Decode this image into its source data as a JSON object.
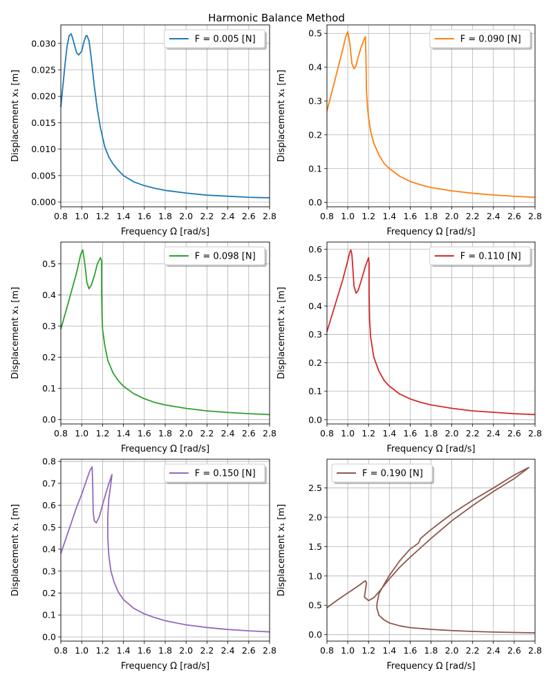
{
  "figure": {
    "title": "Harmonic Balance Method"
  },
  "chart_data": [
    {
      "type": "line",
      "xlabel": "Frequency Ω [rad/s]",
      "ylabel": "Displacement x₁ [m]",
      "xlim": [
        0.8,
        2.8
      ],
      "ylim": [
        -0.0009,
        0.0335
      ],
      "xticks": [
        "0.8",
        "1.0",
        "1.2",
        "1.4",
        "1.6",
        "1.8",
        "2.0",
        "2.2",
        "2.4",
        "2.6",
        "2.8"
      ],
      "yticks": [
        "0.000",
        "0.005",
        "0.010",
        "0.015",
        "0.020",
        "0.025",
        "0.030"
      ],
      "legend_position": "top-right",
      "grid": true,
      "series": [
        {
          "name": "F = 0.005 [N]",
          "color": "#1f77b4",
          "points": [
            [
              0.8,
              0.018
            ],
            [
              0.82,
              0.022
            ],
            [
              0.84,
              0.026
            ],
            [
              0.86,
              0.0295
            ],
            [
              0.88,
              0.0315
            ],
            [
              0.9,
              0.0318
            ],
            [
              0.92,
              0.0305
            ],
            [
              0.95,
              0.0283
            ],
            [
              0.97,
              0.0278
            ],
            [
              1.0,
              0.0285
            ],
            [
              1.02,
              0.0302
            ],
            [
              1.04,
              0.0314
            ],
            [
              1.05,
              0.0315
            ],
            [
              1.07,
              0.0305
            ],
            [
              1.09,
              0.0275
            ],
            [
              1.12,
              0.022
            ],
            [
              1.15,
              0.0175
            ],
            [
              1.18,
              0.014
            ],
            [
              1.22,
              0.0105
            ],
            [
              1.26,
              0.0085
            ],
            [
              1.3,
              0.0072
            ],
            [
              1.35,
              0.006
            ],
            [
              1.4,
              0.005
            ],
            [
              1.5,
              0.0038
            ],
            [
              1.6,
              0.0031
            ],
            [
              1.7,
              0.0026
            ],
            [
              1.8,
              0.0022
            ],
            [
              2.0,
              0.0017
            ],
            [
              2.2,
              0.0013
            ],
            [
              2.4,
              0.0011
            ],
            [
              2.6,
              0.0009
            ],
            [
              2.8,
              0.0008
            ]
          ]
        }
      ]
    },
    {
      "type": "line",
      "xlabel": "Frequency Ω [rad/s]",
      "ylabel": "Displacement x₁ [m]",
      "xlim": [
        0.8,
        2.8
      ],
      "ylim": [
        -0.013,
        0.525
      ],
      "xticks": [
        "0.8",
        "1.0",
        "1.2",
        "1.4",
        "1.6",
        "1.8",
        "2.0",
        "2.2",
        "2.4",
        "2.6",
        "2.8"
      ],
      "yticks": [
        "0.0",
        "0.1",
        "0.2",
        "0.3",
        "0.4",
        "0.5"
      ],
      "legend_position": "top-right",
      "grid": true,
      "series": [
        {
          "name": "F = 0.090 [N]",
          "color": "#ff7f0e",
          "points": [
            [
              0.8,
              0.27
            ],
            [
              0.85,
              0.33
            ],
            [
              0.9,
              0.39
            ],
            [
              0.95,
              0.45
            ],
            [
              0.98,
              0.49
            ],
            [
              1.0,
              0.505
            ],
            [
              1.02,
              0.47
            ],
            [
              1.04,
              0.41
            ],
            [
              1.06,
              0.395
            ],
            [
              1.08,
              0.405
            ],
            [
              1.1,
              0.43
            ],
            [
              1.13,
              0.46
            ],
            [
              1.16,
              0.485
            ],
            [
              1.17,
              0.49
            ],
            [
              1.175,
              0.43
            ],
            [
              1.18,
              0.33
            ],
            [
              1.19,
              0.28
            ],
            [
              1.2,
              0.25
            ],
            [
              1.22,
              0.21
            ],
            [
              1.25,
              0.175
            ],
            [
              1.3,
              0.14
            ],
            [
              1.35,
              0.115
            ],
            [
              1.4,
              0.1
            ],
            [
              1.5,
              0.077
            ],
            [
              1.6,
              0.062
            ],
            [
              1.7,
              0.052
            ],
            [
              1.8,
              0.044
            ],
            [
              2.0,
              0.034
            ],
            [
              2.2,
              0.027
            ],
            [
              2.4,
              0.022
            ],
            [
              2.6,
              0.018
            ],
            [
              2.8,
              0.015
            ]
          ]
        }
      ]
    },
    {
      "type": "line",
      "xlabel": "Frequency Ω [rad/s]",
      "ylabel": "Displacement x₁ [m]",
      "xlim": [
        0.8,
        2.8
      ],
      "ylim": [
        -0.014,
        0.57
      ],
      "xticks": [
        "0.8",
        "1.0",
        "1.2",
        "1.4",
        "1.6",
        "1.8",
        "2.0",
        "2.2",
        "2.4",
        "2.6",
        "2.8"
      ],
      "yticks": [
        "0.0",
        "0.1",
        "0.2",
        "0.3",
        "0.4",
        "0.5"
      ],
      "legend_position": "top-right",
      "grid": true,
      "series": [
        {
          "name": "F = 0.098 [N]",
          "color": "#2ca02c",
          "points": [
            [
              0.8,
              0.29
            ],
            [
              0.85,
              0.35
            ],
            [
              0.9,
              0.41
            ],
            [
              0.95,
              0.47
            ],
            [
              0.99,
              0.53
            ],
            [
              1.01,
              0.545
            ],
            [
              1.03,
              0.5
            ],
            [
              1.05,
              0.44
            ],
            [
              1.07,
              0.42
            ],
            [
              1.09,
              0.43
            ],
            [
              1.12,
              0.46
            ],
            [
              1.15,
              0.5
            ],
            [
              1.18,
              0.52
            ],
            [
              1.19,
              0.51
            ],
            [
              1.19,
              0.42
            ],
            [
              1.195,
              0.33
            ],
            [
              1.2,
              0.29
            ],
            [
              1.22,
              0.24
            ],
            [
              1.25,
              0.19
            ],
            [
              1.3,
              0.15
            ],
            [
              1.35,
              0.125
            ],
            [
              1.4,
              0.107
            ],
            [
              1.5,
              0.083
            ],
            [
              1.6,
              0.067
            ],
            [
              1.7,
              0.055
            ],
            [
              1.8,
              0.047
            ],
            [
              2.0,
              0.036
            ],
            [
              2.2,
              0.028
            ],
            [
              2.4,
              0.023
            ],
            [
              2.6,
              0.019
            ],
            [
              2.8,
              0.016
            ]
          ]
        }
      ]
    },
    {
      "type": "line",
      "xlabel": "Frequency Ω [rad/s]",
      "ylabel": "Displacement x₁ [m]",
      "xlim": [
        0.8,
        2.8
      ],
      "ylim": [
        -0.015,
        0.625
      ],
      "xticks": [
        "0.8",
        "1.0",
        "1.2",
        "1.4",
        "1.6",
        "1.8",
        "2.0",
        "2.2",
        "2.4",
        "2.6",
        "2.8"
      ],
      "yticks": [
        "0.0",
        "0.1",
        "0.2",
        "0.3",
        "0.4",
        "0.5",
        "0.6"
      ],
      "legend_position": "top-right",
      "grid": true,
      "series": [
        {
          "name": "F = 0.110 [N]",
          "color": "#d62728",
          "points": [
            [
              0.8,
              0.31
            ],
            [
              0.85,
              0.37
            ],
            [
              0.9,
              0.43
            ],
            [
              0.95,
              0.49
            ],
            [
              1.0,
              0.56
            ],
            [
              1.02,
              0.59
            ],
            [
              1.03,
              0.597
            ],
            [
              1.04,
              0.58
            ],
            [
              1.06,
              0.47
            ],
            [
              1.08,
              0.445
            ],
            [
              1.1,
              0.455
            ],
            [
              1.13,
              0.49
            ],
            [
              1.17,
              0.54
            ],
            [
              1.2,
              0.57
            ],
            [
              1.205,
              0.55
            ],
            [
              1.205,
              0.45
            ],
            [
              1.21,
              0.35
            ],
            [
              1.22,
              0.29
            ],
            [
              1.25,
              0.22
            ],
            [
              1.3,
              0.17
            ],
            [
              1.35,
              0.138
            ],
            [
              1.4,
              0.118
            ],
            [
              1.5,
              0.09
            ],
            [
              1.6,
              0.073
            ],
            [
              1.7,
              0.061
            ],
            [
              1.8,
              0.052
            ],
            [
              2.0,
              0.04
            ],
            [
              2.2,
              0.031
            ],
            [
              2.4,
              0.026
            ],
            [
              2.6,
              0.021
            ],
            [
              2.8,
              0.018
            ]
          ]
        }
      ]
    },
    {
      "type": "line",
      "xlabel": "Frequency Ω [rad/s]",
      "ylabel": "Displacement x₁ [m]",
      "xlim": [
        0.8,
        2.8
      ],
      "ylim": [
        -0.019,
        0.81
      ],
      "xticks": [
        "0.8",
        "1.0",
        "1.2",
        "1.4",
        "1.6",
        "1.8",
        "2.0",
        "2.2",
        "2.4",
        "2.6",
        "2.8"
      ],
      "yticks": [
        "0.0",
        "0.1",
        "0.2",
        "0.3",
        "0.4",
        "0.5",
        "0.6",
        "0.7",
        "0.8"
      ],
      "legend_position": "top-right",
      "grid": true,
      "series": [
        {
          "name": "F = 0.150 [N]",
          "color": "#9467bd",
          "points": [
            [
              0.8,
              0.38
            ],
            [
              0.85,
              0.45
            ],
            [
              0.9,
              0.52
            ],
            [
              0.95,
              0.59
            ],
            [
              1.0,
              0.65
            ],
            [
              1.05,
              0.72
            ],
            [
              1.08,
              0.76
            ],
            [
              1.1,
              0.775
            ],
            [
              1.105,
              0.7
            ],
            [
              1.11,
              0.57
            ],
            [
              1.12,
              0.53
            ],
            [
              1.14,
              0.52
            ],
            [
              1.17,
              0.55
            ],
            [
              1.21,
              0.62
            ],
            [
              1.26,
              0.7
            ],
            [
              1.29,
              0.74
            ],
            [
              1.28,
              0.7
            ],
            [
              1.26,
              0.63
            ],
            [
              1.25,
              0.55
            ],
            [
              1.25,
              0.45
            ],
            [
              1.26,
              0.37
            ],
            [
              1.28,
              0.3
            ],
            [
              1.31,
              0.25
            ],
            [
              1.35,
              0.205
            ],
            [
              1.4,
              0.17
            ],
            [
              1.5,
              0.13
            ],
            [
              1.6,
              0.105
            ],
            [
              1.7,
              0.088
            ],
            [
              1.8,
              0.074
            ],
            [
              2.0,
              0.055
            ],
            [
              2.2,
              0.043
            ],
            [
              2.4,
              0.034
            ],
            [
              2.6,
              0.028
            ],
            [
              2.8,
              0.023
            ]
          ]
        }
      ]
    },
    {
      "type": "line",
      "xlabel": "Frequency Ω [rad/s]",
      "ylabel": "Displacement x₁ [m]",
      "xlim": [
        0.8,
        2.8
      ],
      "ylim": [
        -0.11,
        2.99
      ],
      "xticks": [
        "0.8",
        "1.0",
        "1.2",
        "1.4",
        "1.6",
        "1.8",
        "2.0",
        "2.2",
        "2.4",
        "2.6",
        "2.8"
      ],
      "yticks": [
        "0.0",
        "0.5",
        "1.0",
        "1.5",
        "2.0",
        "2.5"
      ],
      "legend_position": "top-left",
      "grid": true,
      "series": [
        {
          "name": "F = 0.190 [N]",
          "color": "#8c564b",
          "points": [
            [
              0.8,
              0.46
            ],
            [
              0.9,
              0.59
            ],
            [
              1.0,
              0.71
            ],
            [
              1.1,
              0.83
            ],
            [
              1.17,
              0.92
            ],
            [
              1.18,
              0.88
            ],
            [
              1.16,
              0.64
            ],
            [
              1.2,
              0.58
            ],
            [
              1.25,
              0.63
            ],
            [
              1.3,
              0.73
            ],
            [
              1.4,
              0.95
            ],
            [
              1.5,
              1.15
            ],
            [
              1.6,
              1.32
            ],
            [
              1.7,
              1.48
            ],
            [
              1.8,
              1.64
            ],
            [
              1.9,
              1.79
            ],
            [
              2.0,
              1.94
            ],
            [
              2.2,
              2.2
            ],
            [
              2.4,
              2.44
            ],
            [
              2.6,
              2.66
            ],
            [
              2.72,
              2.82
            ],
            [
              2.74,
              2.85
            ],
            [
              2.6,
              2.72
            ],
            [
              2.4,
              2.5
            ],
            [
              2.2,
              2.29
            ],
            [
              2.0,
              2.06
            ],
            [
              1.8,
              1.79
            ],
            [
              1.7,
              1.64
            ],
            [
              1.68,
              1.56
            ],
            [
              1.6,
              1.46
            ],
            [
              1.5,
              1.26
            ],
            [
              1.4,
              1.01
            ],
            [
              1.35,
              0.86
            ],
            [
              1.3,
              0.7
            ],
            [
              1.28,
              0.52
            ],
            [
              1.28,
              0.45
            ],
            [
              1.3,
              0.33
            ],
            [
              1.35,
              0.25
            ],
            [
              1.4,
              0.2
            ],
            [
              1.5,
              0.15
            ],
            [
              1.6,
              0.12
            ],
            [
              1.8,
              0.09
            ],
            [
              2.0,
              0.07
            ],
            [
              2.2,
              0.055
            ],
            [
              2.4,
              0.045
            ],
            [
              2.6,
              0.037
            ],
            [
              2.8,
              0.03
            ]
          ]
        }
      ]
    }
  ]
}
